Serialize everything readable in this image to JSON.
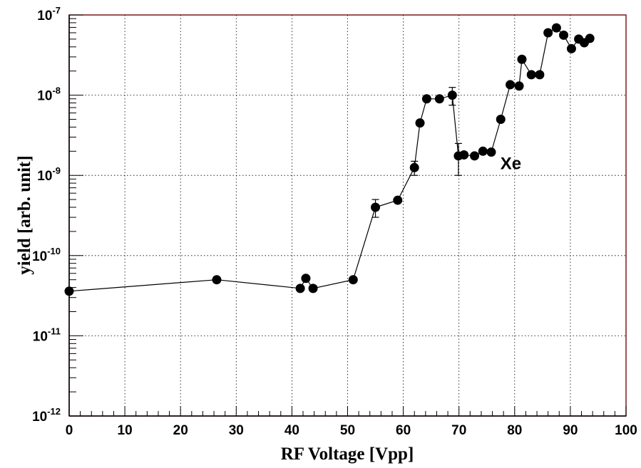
{
  "chart_data": {
    "type": "scatter",
    "title": "",
    "xlabel": "RF Voltage [Vpp]",
    "ylabel": "yield [arb. unit]",
    "xlim": [
      0,
      100
    ],
    "ylim": [
      1e-12,
      1e-07
    ],
    "yscale": "log",
    "grid": true,
    "connected_line": true,
    "error_bars": true,
    "x_ticks": [
      0,
      10,
      20,
      30,
      40,
      50,
      60,
      70,
      80,
      90,
      100
    ],
    "y_ticks": [
      {
        "mantissa": "10",
        "exponent": "-12",
        "value": 1e-12
      },
      {
        "mantissa": "10",
        "exponent": "-11",
        "value": 1e-11
      },
      {
        "mantissa": "10",
        "exponent": "-10",
        "value": 1e-10
      },
      {
        "mantissa": "10",
        "exponent": "-9",
        "value": 1e-09
      },
      {
        "mantissa": "10",
        "exponent": "-8",
        "value": 1e-08
      },
      {
        "mantissa": "10",
        "exponent": "-7",
        "value": 1e-07
      }
    ],
    "annotations": [
      {
        "text": "Xe",
        "x": 80,
        "y": 1.4e-09
      }
    ],
    "series": [
      {
        "color": "#000000",
        "x": [
          0,
          26.5,
          41.5,
          42.5,
          43.8,
          51,
          55,
          59,
          62,
          63,
          64.2,
          66.5,
          68.8,
          69.9,
          70.9,
          72.8,
          74.3,
          75.8,
          77.5,
          79.2,
          80.8,
          81.3,
          83,
          84.5,
          86,
          87.5,
          88.8,
          90.2,
          91.5,
          92.5,
          93.5
        ],
        "y": [
          3.6e-11,
          5e-11,
          3.9e-11,
          5.2e-11,
          3.9e-11,
          5e-11,
          4e-10,
          4.9e-10,
          1.25e-09,
          4.5e-09,
          9e-09,
          9e-09,
          1e-08,
          1.75e-09,
          1.8e-09,
          1.75e-09,
          2e-09,
          1.95e-09,
          5e-09,
          1.35e-08,
          1.3e-08,
          2.8e-08,
          1.8e-08,
          1.8e-08,
          6e-08,
          6.9e-08,
          5.6e-08,
          3.8e-08,
          5e-08,
          4.5e-08,
          5.1e-08
        ],
        "y_err": [
          0,
          0,
          0,
          0,
          0,
          0,
          1e-10,
          0,
          2.5e-10,
          0,
          0,
          0,
          2.5e-09,
          7.5e-10,
          0,
          0,
          0,
          0,
          0,
          0,
          0,
          0,
          0,
          0,
          0,
          0,
          0,
          0,
          0,
          0,
          0
        ]
      }
    ]
  }
}
